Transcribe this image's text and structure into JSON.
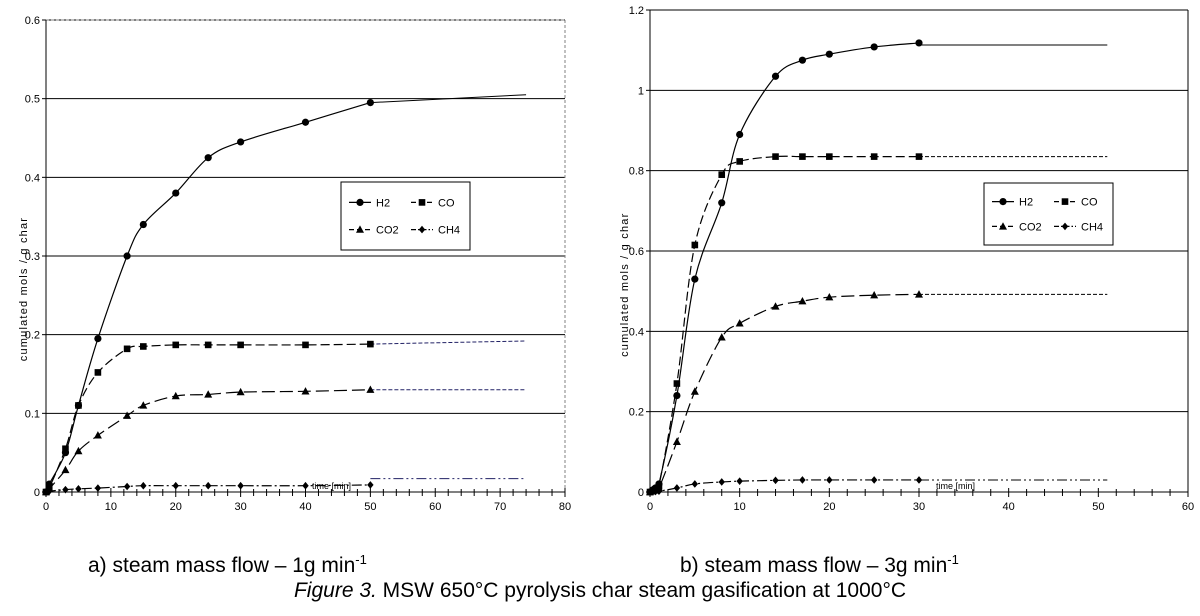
{
  "figure": {
    "caption_label": "Figure 3.",
    "caption_text": " MSW 650°C pyrolysis char steam gasification at 1000°C"
  },
  "chart_data": [
    {
      "type": "line",
      "panel_caption": "a) steam mass flow – 1g min",
      "panel_caption_sup": "-1",
      "xlabel": "time [min]",
      "ylabel": "cumulated mols / g char",
      "xlim": [
        0,
        80
      ],
      "ylim": [
        0,
        0.6
      ],
      "xticks": [
        0,
        10,
        20,
        30,
        40,
        50,
        60,
        70,
        80
      ],
      "yticks": [
        0,
        0.1,
        0.2,
        0.3,
        0.4,
        0.5,
        0.6
      ],
      "grid": true,
      "legend": {
        "position": "center-right",
        "entries": [
          "H2",
          "CO",
          "CO2",
          "CH4"
        ]
      },
      "series": [
        {
          "name": "H2",
          "marker": "circle",
          "dash": "solid",
          "x": [
            0,
            0.5,
            3,
            5,
            8,
            12.5,
            15,
            20,
            25,
            30,
            40,
            50
          ],
          "y": [
            0,
            0.01,
            0.05,
            0.11,
            0.195,
            0.3,
            0.34,
            0.38,
            0.425,
            0.445,
            0.47,
            0.495
          ],
          "extension": {
            "x": [
              50,
              74
            ],
            "y": [
              0.495,
              0.505
            ]
          }
        },
        {
          "name": "CO",
          "marker": "square",
          "dash": "dashed",
          "x": [
            0,
            0.5,
            3,
            5,
            8,
            12.5,
            15,
            20,
            25,
            30,
            40,
            50
          ],
          "y": [
            0,
            0.005,
            0.055,
            0.11,
            0.152,
            0.182,
            0.185,
            0.187,
            0.187,
            0.187,
            0.187,
            0.188
          ],
          "extension": {
            "x": [
              50,
              74
            ],
            "y": [
              0.188,
              0.192
            ]
          }
        },
        {
          "name": "CO2",
          "marker": "triangle",
          "dash": "longdash",
          "x": [
            0,
            0.5,
            3,
            5,
            8,
            12.5,
            15,
            20,
            25,
            30,
            40,
            50
          ],
          "y": [
            0,
            0.004,
            0.028,
            0.052,
            0.072,
            0.097,
            0.11,
            0.122,
            0.124,
            0.127,
            0.128,
            0.13
          ],
          "extension": {
            "x": [
              50,
              74
            ],
            "y": [
              0.13,
              0.13
            ]
          }
        },
        {
          "name": "CH4",
          "marker": "diamond",
          "dash": "dashdot",
          "x": [
            0,
            0.5,
            3,
            5,
            8,
            12.5,
            15,
            20,
            25,
            30,
            40,
            50
          ],
          "y": [
            0,
            0.001,
            0.003,
            0.004,
            0.005,
            0.007,
            0.008,
            0.008,
            0.008,
            0.008,
            0.008,
            0.009
          ],
          "extension": {
            "x": [
              50,
              74
            ],
            "y": [
              0.017,
              0.017
            ]
          }
        }
      ]
    },
    {
      "type": "line",
      "panel_caption": "b) steam mass flow – 3g min",
      "panel_caption_sup": "-1",
      "xlabel": "time [min]",
      "ylabel": "cumulated mols / g char",
      "xlim": [
        0,
        60
      ],
      "ylim": [
        0,
        1.2
      ],
      "xticks": [
        0,
        10,
        20,
        30,
        40,
        50,
        60
      ],
      "yticks": [
        0,
        0.2,
        0.4,
        0.6,
        0.8,
        1,
        1.2
      ],
      "grid": true,
      "legend": {
        "position": "center-right",
        "entries": [
          "H2",
          "CO",
          "CO2",
          "CH4"
        ]
      },
      "series": [
        {
          "name": "H2",
          "marker": "circle",
          "dash": "solid",
          "x": [
            0,
            0.3,
            0.6,
            1,
            3,
            5,
            8,
            10,
            14,
            17,
            20,
            25,
            30
          ],
          "y": [
            0,
            0.005,
            0.01,
            0.02,
            0.24,
            0.53,
            0.72,
            0.89,
            1.035,
            1.075,
            1.09,
            1.108,
            1.118
          ],
          "extension": {
            "x": [
              30,
              51
            ],
            "y": [
              1.113,
              1.113
            ]
          }
        },
        {
          "name": "CO",
          "marker": "square",
          "dash": "dashed",
          "x": [
            0,
            0.3,
            0.6,
            1,
            3,
            5,
            8,
            10,
            14,
            17,
            20,
            25,
            30
          ],
          "y": [
            0,
            0.003,
            0.007,
            0.015,
            0.27,
            0.615,
            0.79,
            0.823,
            0.835,
            0.835,
            0.835,
            0.835,
            0.835
          ],
          "extension": {
            "x": [
              30,
              51
            ],
            "y": [
              0.835,
              0.835
            ]
          }
        },
        {
          "name": "CO2",
          "marker": "triangle",
          "dash": "longdash",
          "x": [
            0,
            0.3,
            0.6,
            1,
            3,
            5,
            8,
            10,
            14,
            17,
            20,
            25,
            30
          ],
          "y": [
            0,
            0.002,
            0.004,
            0.01,
            0.125,
            0.25,
            0.385,
            0.42,
            0.462,
            0.475,
            0.485,
            0.49,
            0.492
          ],
          "extension": {
            "x": [
              30,
              51
            ],
            "y": [
              0.492,
              0.492
            ]
          }
        },
        {
          "name": "CH4",
          "marker": "diamond",
          "dash": "dashdot",
          "x": [
            0,
            0.3,
            0.6,
            1,
            3,
            5,
            8,
            10,
            14,
            17,
            20,
            25,
            30
          ],
          "y": [
            0,
            0.001,
            0.001,
            0.002,
            0.01,
            0.02,
            0.025,
            0.027,
            0.029,
            0.03,
            0.03,
            0.03,
            0.03
          ],
          "extension": {
            "x": [
              30,
              51
            ],
            "y": [
              0.03,
              0.03
            ]
          }
        }
      ]
    }
  ]
}
